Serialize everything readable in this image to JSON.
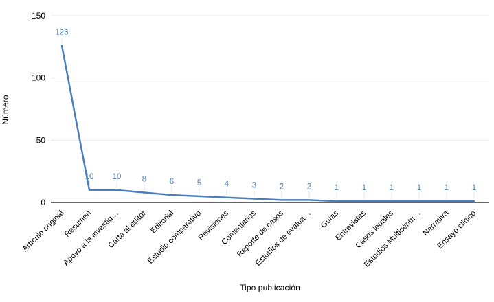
{
  "chart_data": {
    "type": "line",
    "title": "",
    "xlabel": "Tipo publicación",
    "ylabel": "Número",
    "categories": [
      "Artículo original",
      "Resumen",
      "Apoyo a la investig…",
      "Carta al editor",
      "Editorial",
      "Estudio comparativo",
      "Revisiones",
      "Comentarios",
      "Reporte de casos",
      "Estudios de evalua…",
      "Guías",
      "Entrevistas",
      "Casos legales",
      "Estudios Multicéntri…",
      "Narrativa",
      "Ensayo clinico"
    ],
    "values": [
      126,
      10,
      10,
      8,
      6,
      5,
      4,
      3,
      2,
      2,
      1,
      1,
      1,
      1,
      1,
      1
    ],
    "ylim": [
      0,
      150
    ],
    "yticks": [
      0,
      50,
      100,
      150
    ],
    "grid": true,
    "legend": "none",
    "series_color": "#4a7ebd",
    "data_label_color": "#4a7ebd"
  },
  "colors": {
    "gridline": "#e6e6e6",
    "leader": "#e0e0e0",
    "axis_baseline": "#666666",
    "tick_text": "#000000",
    "category_text": "#000000",
    "background": "#ffffff"
  }
}
